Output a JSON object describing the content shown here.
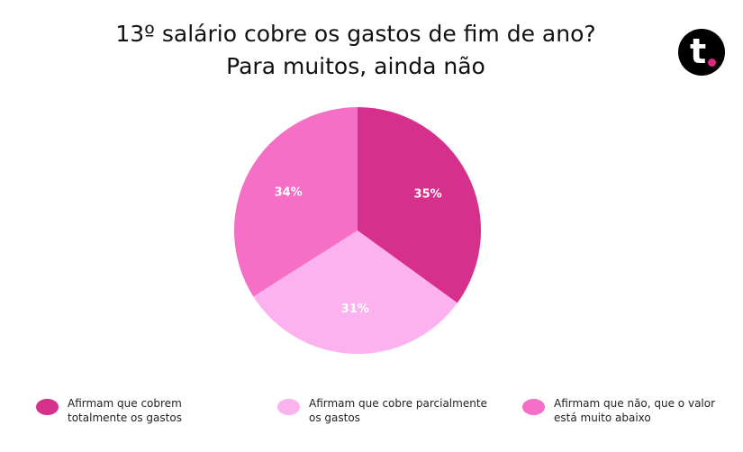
{
  "title_lines": [
    "13º salário cobre os gastos de fim de ano?",
    "Para muitos, ainda não"
  ],
  "logo": {
    "letter": "t",
    "bg_color": "#000000",
    "dot_color": "#e0277e"
  },
  "chart_data": {
    "type": "pie",
    "slices": [
      {
        "label": "Afirmam que cobrem\ntotalmente os gastos",
        "value": 35,
        "display": "35%",
        "color": "#d62f8c"
      },
      {
        "label": "Afirmam que cobre parcialmente\nos gastos",
        "value": 31,
        "display": "31%",
        "color": "#fbb2ee"
      },
      {
        "label": "Afirmam que não, que o valor\nestá muito abaixo",
        "value": 34,
        "display": "34%",
        "color": "#f46fc5"
      }
    ],
    "start_angle": "12 o'clock, clockwise",
    "legend_position": "bottom"
  }
}
